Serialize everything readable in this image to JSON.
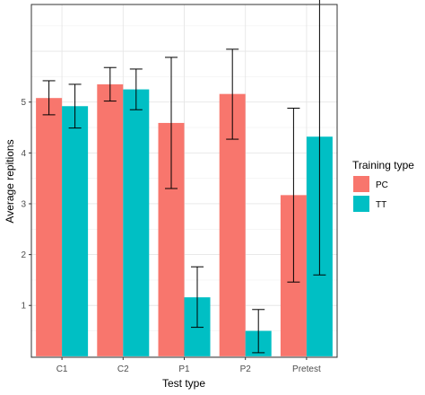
{
  "chart_data": {
    "type": "bar",
    "xlabel": "Test type",
    "ylabel": "Average repitions",
    "categories": [
      "C1",
      "C2",
      "P1",
      "P2",
      "Pretest"
    ],
    "yticks": [
      1,
      2,
      3,
      4,
      5
    ],
    "ylim": [
      -0.02,
      6.92
    ],
    "grid": true,
    "legend": {
      "title": "Training type",
      "position": "right"
    },
    "series": [
      {
        "name": "PC",
        "color": "#F8766D",
        "values": [
          5.08,
          5.35,
          4.59,
          5.16,
          3.17
        ],
        "err_low": [
          4.75,
          5.02,
          3.3,
          4.27,
          1.46
        ],
        "err_high": [
          5.42,
          5.68,
          5.88,
          6.04,
          4.88
        ]
      },
      {
        "name": "TT",
        "color": "#00BFC4",
        "values": [
          4.92,
          5.25,
          1.16,
          0.5,
          4.32
        ],
        "err_low": [
          4.49,
          4.85,
          0.57,
          0.07,
          1.6
        ],
        "err_high": [
          5.35,
          5.65,
          1.76,
          0.92,
          7.05
        ]
      }
    ]
  }
}
